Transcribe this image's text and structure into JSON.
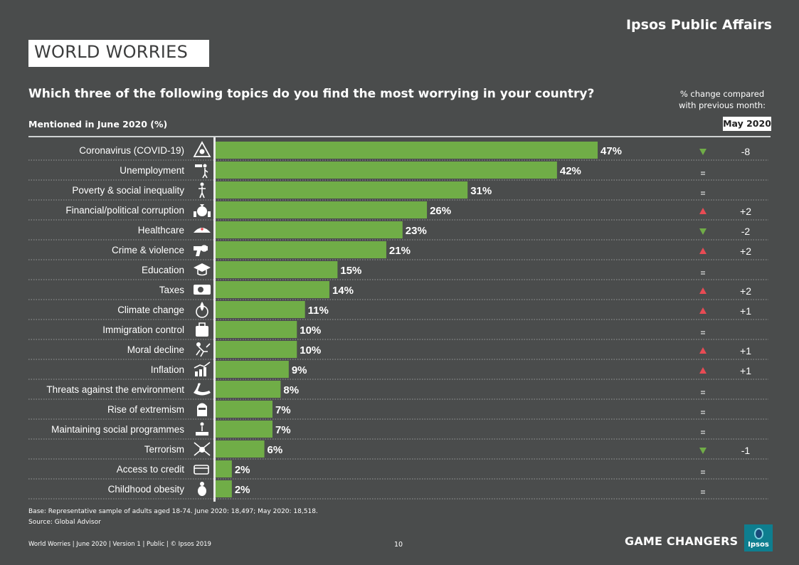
{
  "brand": "Ipsos Public Affairs",
  "title": "WORLD WORRIES",
  "question": "Which three of the following topics do you find the most worrying in your country?",
  "change_note": [
    "% change compared",
    "with previous month:"
  ],
  "mentioned_label": "Mentioned in June 2020 (%)",
  "compare_month": "May 2020",
  "colors": {
    "bar": "#70ad47",
    "up": "#e84b54",
    "down": "#70ad47",
    "background": "#4a4c4c"
  },
  "chart_data": {
    "type": "bar",
    "orientation": "horizontal",
    "categories": [
      "Coronavirus (COVID-19)",
      "Unemployment",
      "Poverty & social inequality",
      "Financial/political corruption",
      "Healthcare",
      "Crime & violence",
      "Education",
      "Taxes",
      "Climate change",
      "Immigration control",
      "Moral decline",
      "Inflation",
      "Threats against the environment",
      "Rise of extremism",
      "Maintaining social programmes",
      "Terrorism",
      "Access to credit",
      "Childhood obesity"
    ],
    "values": [
      47,
      42,
      31,
      26,
      23,
      21,
      15,
      14,
      11,
      10,
      10,
      9,
      8,
      7,
      7,
      6,
      2,
      2
    ],
    "value_labels": [
      "47%",
      "42%",
      "31%",
      "26%",
      "23%",
      "21%",
      "15%",
      "14%",
      "11%",
      "10%",
      "10%",
      "9%",
      "8%",
      "7%",
      "7%",
      "6%",
      "2%",
      "2%"
    ],
    "change_direction": [
      "down",
      "same",
      "same",
      "up",
      "down",
      "up",
      "same",
      "up",
      "up",
      "same",
      "up",
      "up",
      "same",
      "same",
      "same",
      "down",
      "same",
      "same"
    ],
    "change_labels": [
      "-8",
      "",
      "",
      "+2",
      "-2",
      "+2",
      "",
      "+2",
      "+1",
      "",
      "+1",
      "+1",
      "",
      "",
      "",
      "-1",
      "",
      ""
    ],
    "icons": [
      "biohazard-icon",
      "unemployment-icon",
      "person-icon",
      "money-bag-icon",
      "nurse-cap-icon",
      "gun-icon",
      "graduation-cap-icon",
      "taxes-icon",
      "globe-fire-icon",
      "suitcase-icon",
      "moral-decline-icon",
      "rising-chart-icon",
      "swan-icon",
      "balaclava-icon",
      "person-platform-icon",
      "crossed-knives-skull-icon",
      "credit-card-icon",
      "obese-child-icon"
    ],
    "xlim": [
      0,
      50
    ]
  },
  "footer": {
    "base": "Base: Representative sample of adults aged 18-74. June 2020: 18,497; May 2020: 18,518.",
    "source": "Source: Global Advisor",
    "meta": "World Worries  |  June 2020  |  Version 1  |  Public  |  © Ipsos 2019",
    "page": "10",
    "tagline": "GAME CHANGERS",
    "logo": "Ipsos"
  }
}
